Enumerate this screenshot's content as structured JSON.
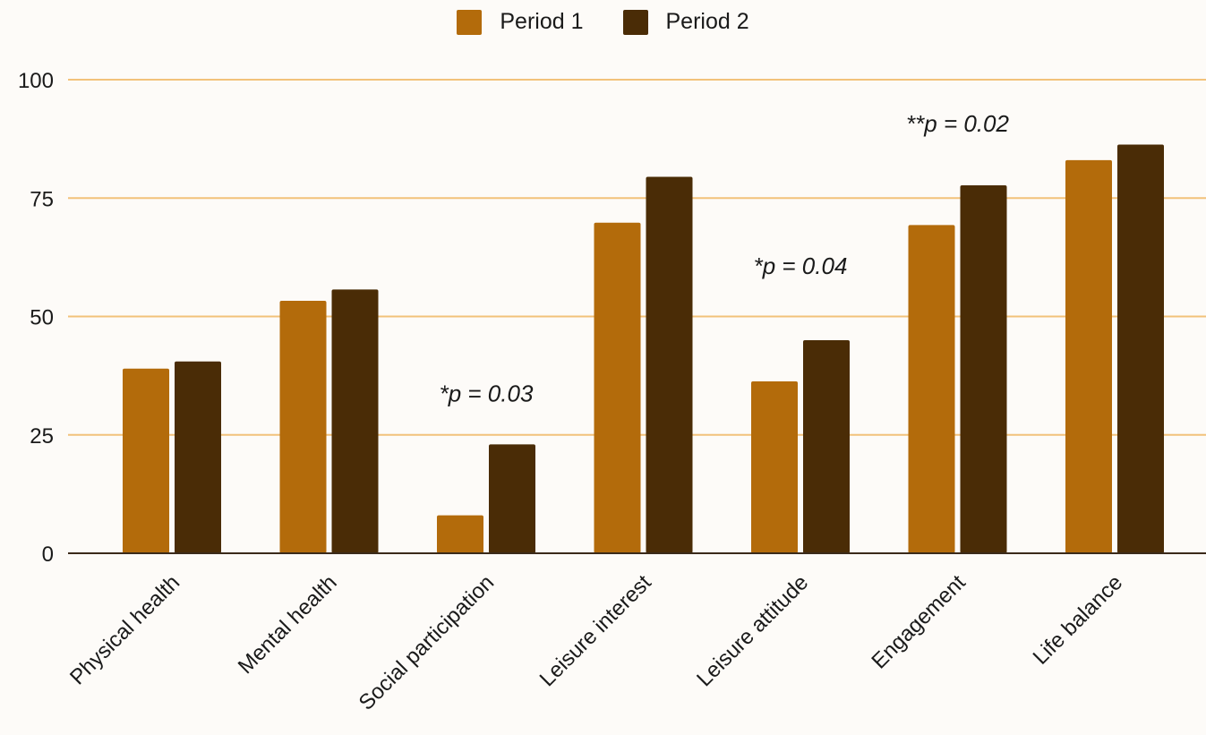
{
  "chart_data": {
    "type": "bar",
    "categories": [
      "Physical health",
      "Mental health",
      "Social participation",
      "Leisure interest",
      "Leisure attitude",
      "Engagement",
      "Life balance"
    ],
    "series": [
      {
        "name": "Period 1",
        "values": [
          39,
          53.3,
          8,
          69.8,
          36.3,
          69.3,
          83
        ],
        "color": "#b36b0b"
      },
      {
        "name": "Period 2",
        "values": [
          40.5,
          55.7,
          23,
          79.5,
          45,
          77.7,
          86.3
        ],
        "color": "#4a2c06"
      }
    ],
    "yticks": [
      0,
      25,
      50,
      75,
      100
    ],
    "ylim": [
      0,
      100
    ],
    "grid": true,
    "gridColor": "#f2c27a",
    "legend_position": "top-center",
    "annotations": [
      {
        "text": "*p = 0.03",
        "category": 2,
        "y": 32
      },
      {
        "text": "*p = 0.04",
        "category": 4,
        "y": 59
      },
      {
        "text": "**p = 0.02",
        "category": 5,
        "y": 89
      }
    ]
  }
}
